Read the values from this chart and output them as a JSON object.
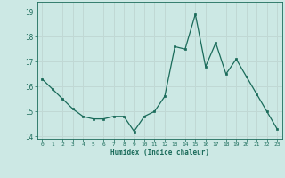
{
  "x": [
    0,
    1,
    2,
    3,
    4,
    5,
    6,
    7,
    8,
    9,
    10,
    11,
    12,
    13,
    14,
    15,
    16,
    17,
    18,
    19,
    20,
    21,
    22,
    23
  ],
  "y": [
    16.3,
    15.9,
    15.5,
    15.1,
    14.8,
    14.7,
    14.7,
    14.8,
    14.8,
    14.2,
    14.8,
    15.0,
    15.6,
    17.6,
    17.5,
    18.9,
    16.8,
    17.75,
    16.5,
    17.1,
    16.4,
    15.7,
    15.0,
    14.3
  ],
  "xlim": [
    -0.5,
    23.5
  ],
  "ylim": [
    13.9,
    19.4
  ],
  "yticks": [
    14,
    15,
    16,
    17,
    18,
    19
  ],
  "xticks": [
    0,
    1,
    2,
    3,
    4,
    5,
    6,
    7,
    8,
    9,
    10,
    11,
    12,
    13,
    14,
    15,
    16,
    17,
    18,
    19,
    20,
    21,
    22,
    23
  ],
  "xlabel": "Humidex (Indice chaleur)",
  "line_color": "#1a6b5a",
  "bg_color": "#cce8e4",
  "grid_color": "#c0d8d4",
  "tick_color": "#1a6b5a"
}
